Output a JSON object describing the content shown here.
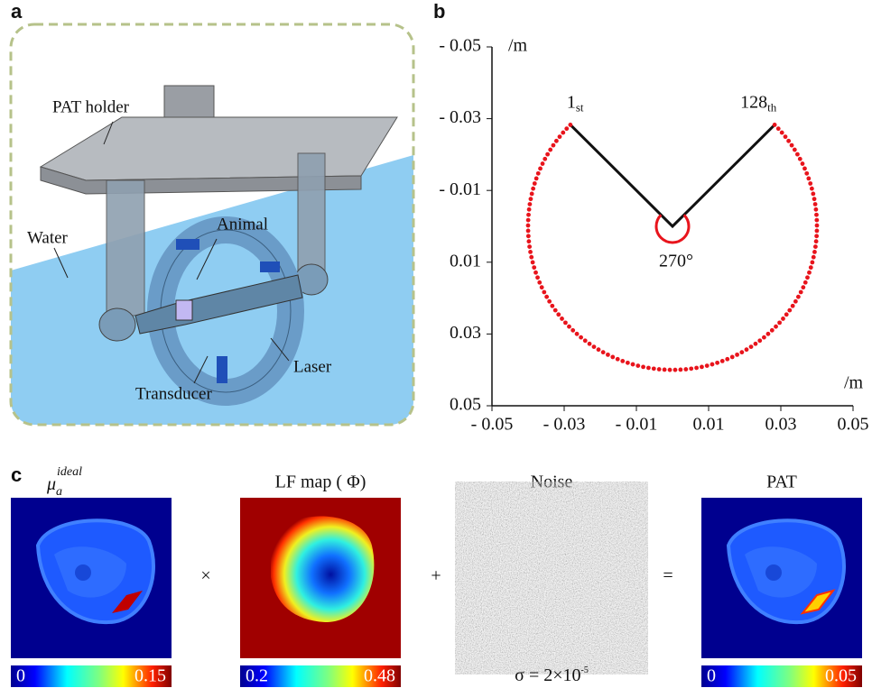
{
  "panel_a": {
    "letter": "a",
    "labels": {
      "holder": "PAT holder",
      "water": "Water",
      "animal": "Animal",
      "laser": "Laser",
      "transducer": "Transducer"
    }
  },
  "chart_data": {
    "type": "scatter",
    "letter": "b",
    "xlabel": "/m",
    "ylabel": "/m",
    "xlim": [
      -0.05,
      0.05
    ],
    "ylim": [
      -0.05,
      0.05
    ],
    "y_inverted": true,
    "xticks": [
      {
        "value": -0.05,
        "label": "- 0.05"
      },
      {
        "value": -0.03,
        "label": "- 0.03"
      },
      {
        "value": -0.01,
        "label": "- 0.01"
      },
      0.01,
      0.03,
      0.05
    ],
    "yticks": [
      {
        "value": -0.05,
        "label": "- 0.05"
      },
      {
        "value": -0.03,
        "label": "- 0.03"
      },
      {
        "value": -0.01,
        "label": "- 0.01"
      },
      0.01,
      0.03,
      0.05
    ],
    "sensors": {
      "count": 128,
      "radius": 0.04,
      "span_deg": 270,
      "color": "#e8141c"
    },
    "annotations": {
      "first": "1",
      "first_suffix": "st",
      "last": "128",
      "last_suffix": "th",
      "angle": "270°"
    }
  },
  "panel_c": {
    "letter": "c",
    "mu": {
      "symbol": "μ",
      "sub": "a",
      "sup": "ideal"
    },
    "lf_title": "LF map ( Φ)",
    "noise_title": "Noise",
    "pat_title": "PAT",
    "operators": [
      "×",
      "+",
      "="
    ],
    "sigma": {
      "text": "σ = 2×10",
      "exponent": "-5"
    },
    "colorbars": [
      {
        "min": "0",
        "max": "0.15"
      },
      {
        "min": "0.2",
        "max": "0.48"
      },
      {
        "min": "0",
        "max": "0.05"
      }
    ]
  }
}
